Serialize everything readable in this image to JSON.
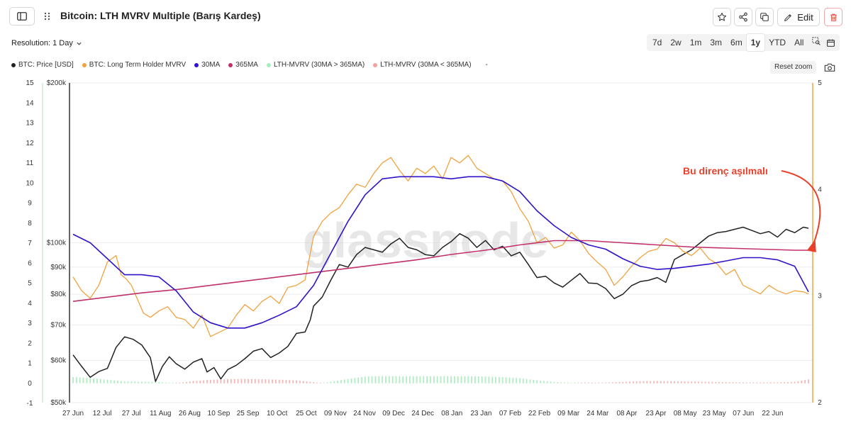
{
  "header": {
    "title": "Bitcoin: LTH MVRV Multiple (Barış Kardeş)",
    "edit_label": "Edit"
  },
  "controls": {
    "resolution_label": "Resolution: 1 Day",
    "ranges": [
      "7d",
      "2w",
      "1m",
      "3m",
      "6m",
      "1y",
      "YTD",
      "All"
    ],
    "active_range": "1y",
    "reset_zoom": "Reset zoom"
  },
  "legend": [
    {
      "label": "BTC: Price [USD]",
      "color": "#222222"
    },
    {
      "label": "BTC: Long Term Holder MVRV",
      "color": "#f0a340"
    },
    {
      "label": "30MA",
      "color": "#2e14c9"
    },
    {
      "label": "365MA",
      "color": "#c2306b"
    },
    {
      "label": "LTH-MVRV (30MA > 365MA)",
      "color": "#a9ebbd"
    },
    {
      "label": "LTH-MVRV (30MA < 365MA)",
      "color": "#f1a2a2"
    },
    {
      "label": "-",
      "color": ""
    }
  ],
  "watermark": "glassnode",
  "annotation": "Bu direnç aşılmalı",
  "chart_data": {
    "type": "line",
    "x_labels": [
      "27 Jun",
      "12 Jul",
      "27 Jul",
      "11 Aug",
      "26 Aug",
      "10 Sep",
      "25 Sep",
      "10 Oct",
      "25 Oct",
      "09 Nov",
      "24 Nov",
      "09 Dec",
      "24 Dec",
      "08 Jan",
      "23 Jan",
      "07 Feb",
      "22 Feb",
      "09 Mar",
      "24 Mar",
      "08 Apr",
      "23 Apr",
      "08 May",
      "23 May",
      "07 Jun",
      "22 Jun"
    ],
    "y_left_oscillator": {
      "ticks": [
        -1,
        0,
        1,
        2,
        3,
        4,
        5,
        6,
        7,
        8,
        9,
        10,
        11,
        12,
        13,
        14,
        15
      ],
      "range": [
        -1,
        15
      ]
    },
    "y_left_price": {
      "ticks": [
        "$50k",
        "$60k",
        "$70k",
        "$80k",
        "$90k",
        "$100k",
        "$200k"
      ],
      "values": [
        50000,
        60000,
        70000,
        80000,
        90000,
        100000,
        200000
      ],
      "scale": "log"
    },
    "y_right_mvrv": {
      "ticks": [
        2,
        3,
        4,
        5
      ],
      "range": [
        2,
        5
      ]
    },
    "series": [
      {
        "name": "BTC: Price [USD]",
        "color": "#222222",
        "axis": "price",
        "points": [
          [
            0,
            61500
          ],
          [
            5,
            58500
          ],
          [
            10,
            55800
          ],
          [
            15,
            57200
          ],
          [
            20,
            58000
          ],
          [
            25,
            63500
          ],
          [
            30,
            66500
          ],
          [
            35,
            65800
          ],
          [
            40,
            64200
          ],
          [
            45,
            60800
          ],
          [
            48,
            54800
          ],
          [
            52,
            58500
          ],
          [
            56,
            61000
          ],
          [
            60,
            59200
          ],
          [
            65,
            57800
          ],
          [
            70,
            59600
          ],
          [
            75,
            60500
          ],
          [
            78,
            57100
          ],
          [
            82,
            58200
          ],
          [
            86,
            55400
          ],
          [
            90,
            57700
          ],
          [
            95,
            58800
          ],
          [
            100,
            60500
          ],
          [
            105,
            62500
          ],
          [
            110,
            63200
          ],
          [
            115,
            60800
          ],
          [
            120,
            62000
          ],
          [
            125,
            63800
          ],
          [
            130,
            67500
          ],
          [
            135,
            67900
          ],
          [
            138,
            71500
          ],
          [
            140,
            76000
          ],
          [
            145,
            79000
          ],
          [
            150,
            85000
          ],
          [
            155,
            91000
          ],
          [
            160,
            90000
          ],
          [
            165,
            95000
          ],
          [
            170,
            98000
          ],
          [
            175,
            97000
          ],
          [
            180,
            96000
          ],
          [
            185,
            99500
          ],
          [
            190,
            102000
          ],
          [
            195,
            98000
          ],
          [
            200,
            97000
          ],
          [
            205,
            95000
          ],
          [
            210,
            94500
          ],
          [
            215,
            98000
          ],
          [
            220,
            100500
          ],
          [
            225,
            104000
          ],
          [
            230,
            102000
          ],
          [
            235,
            98000
          ],
          [
            240,
            101000
          ],
          [
            245,
            97000
          ],
          [
            250,
            98500
          ],
          [
            255,
            94500
          ],
          [
            260,
            96000
          ],
          [
            265,
            91000
          ],
          [
            270,
            86000
          ],
          [
            275,
            86500
          ],
          [
            280,
            84000
          ],
          [
            285,
            82500
          ],
          [
            290,
            85000
          ],
          [
            295,
            87500
          ],
          [
            300,
            84000
          ],
          [
            305,
            83800
          ],
          [
            310,
            82000
          ],
          [
            315,
            78500
          ],
          [
            320,
            80000
          ],
          [
            325,
            83000
          ],
          [
            330,
            84500
          ],
          [
            335,
            85000
          ],
          [
            340,
            86000
          ],
          [
            345,
            84200
          ],
          [
            350,
            93000
          ],
          [
            355,
            95000
          ],
          [
            360,
            97000
          ],
          [
            365,
            100000
          ],
          [
            370,
            103000
          ],
          [
            375,
            104500
          ],
          [
            380,
            105000
          ],
          [
            385,
            106000
          ],
          [
            390,
            107000
          ],
          [
            395,
            105500
          ],
          [
            400,
            104000
          ],
          [
            405,
            105000
          ],
          [
            410,
            102500
          ],
          [
            415,
            106000
          ],
          [
            420,
            104500
          ],
          [
            425,
            107000
          ],
          [
            428,
            106500
          ]
        ]
      },
      {
        "name": "BTC: Long Term Holder MVRV",
        "color": "#f0a340",
        "axis": "mvrv",
        "points": [
          [
            0,
            3.18
          ],
          [
            5,
            3.05
          ],
          [
            10,
            2.98
          ],
          [
            15,
            3.1
          ],
          [
            20,
            3.32
          ],
          [
            25,
            3.38
          ],
          [
            28,
            3.2
          ],
          [
            31,
            3.16
          ],
          [
            34,
            3.1
          ],
          [
            38,
            2.95
          ],
          [
            41,
            2.84
          ],
          [
            45,
            2.8
          ],
          [
            50,
            2.86
          ],
          [
            55,
            2.9
          ],
          [
            60,
            2.8
          ],
          [
            65,
            2.78
          ],
          [
            70,
            2.7
          ],
          [
            75,
            2.82
          ],
          [
            80,
            2.62
          ],
          [
            85,
            2.66
          ],
          [
            90,
            2.7
          ],
          [
            95,
            2.82
          ],
          [
            100,
            2.92
          ],
          [
            105,
            2.86
          ],
          [
            110,
            2.95
          ],
          [
            115,
            3.0
          ],
          [
            120,
            2.93
          ],
          [
            125,
            3.08
          ],
          [
            130,
            3.1
          ],
          [
            135,
            3.15
          ],
          [
            140,
            3.56
          ],
          [
            145,
            3.7
          ],
          [
            150,
            3.78
          ],
          [
            155,
            3.83
          ],
          [
            160,
            3.95
          ],
          [
            165,
            4.05
          ],
          [
            170,
            4.02
          ],
          [
            175,
            4.15
          ],
          [
            180,
            4.25
          ],
          [
            185,
            4.3
          ],
          [
            190,
            4.18
          ],
          [
            195,
            4.08
          ],
          [
            200,
            4.2
          ],
          [
            205,
            4.15
          ],
          [
            210,
            4.22
          ],
          [
            215,
            4.1
          ],
          [
            220,
            4.3
          ],
          [
            225,
            4.25
          ],
          [
            230,
            4.32
          ],
          [
            235,
            4.2
          ],
          [
            240,
            4.15
          ],
          [
            245,
            4.1
          ],
          [
            250,
            4.08
          ],
          [
            255,
            3.98
          ],
          [
            260,
            3.82
          ],
          [
            265,
            3.7
          ],
          [
            270,
            3.5
          ],
          [
            275,
            3.55
          ],
          [
            280,
            3.45
          ],
          [
            285,
            3.48
          ],
          [
            290,
            3.6
          ],
          [
            295,
            3.52
          ],
          [
            300,
            3.4
          ],
          [
            305,
            3.32
          ],
          [
            310,
            3.25
          ],
          [
            315,
            3.1
          ],
          [
            320,
            3.18
          ],
          [
            325,
            3.28
          ],
          [
            330,
            3.36
          ],
          [
            335,
            3.42
          ],
          [
            340,
            3.44
          ],
          [
            345,
            3.54
          ],
          [
            350,
            3.5
          ],
          [
            355,
            3.42
          ],
          [
            360,
            3.38
          ],
          [
            365,
            3.45
          ],
          [
            370,
            3.35
          ],
          [
            375,
            3.3
          ],
          [
            380,
            3.2
          ],
          [
            385,
            3.25
          ],
          [
            390,
            3.1
          ],
          [
            395,
            3.06
          ],
          [
            400,
            3.02
          ],
          [
            405,
            3.1
          ],
          [
            410,
            3.05
          ],
          [
            415,
            3.02
          ],
          [
            420,
            3.05
          ],
          [
            425,
            3.04
          ],
          [
            428,
            3.02
          ]
        ]
      },
      {
        "name": "30MA",
        "color": "#2e14c9",
        "axis": "mvrv",
        "points": [
          [
            0,
            3.58
          ],
          [
            10,
            3.5
          ],
          [
            20,
            3.35
          ],
          [
            30,
            3.2
          ],
          [
            40,
            3.2
          ],
          [
            50,
            3.18
          ],
          [
            60,
            3.05
          ],
          [
            70,
            2.85
          ],
          [
            80,
            2.75
          ],
          [
            90,
            2.7
          ],
          [
            100,
            2.7
          ],
          [
            110,
            2.75
          ],
          [
            120,
            2.82
          ],
          [
            130,
            2.9
          ],
          [
            140,
            3.1
          ],
          [
            150,
            3.4
          ],
          [
            160,
            3.7
          ],
          [
            170,
            3.95
          ],
          [
            180,
            4.1
          ],
          [
            190,
            4.12
          ],
          [
            200,
            4.12
          ],
          [
            210,
            4.12
          ],
          [
            220,
            4.1
          ],
          [
            230,
            4.12
          ],
          [
            240,
            4.12
          ],
          [
            250,
            4.08
          ],
          [
            260,
            3.98
          ],
          [
            270,
            3.8
          ],
          [
            280,
            3.66
          ],
          [
            290,
            3.55
          ],
          [
            300,
            3.48
          ],
          [
            310,
            3.44
          ],
          [
            320,
            3.35
          ],
          [
            330,
            3.28
          ],
          [
            340,
            3.25
          ],
          [
            350,
            3.26
          ],
          [
            360,
            3.28
          ],
          [
            370,
            3.3
          ],
          [
            380,
            3.33
          ],
          [
            390,
            3.36
          ],
          [
            400,
            3.36
          ],
          [
            410,
            3.34
          ],
          [
            420,
            3.28
          ],
          [
            428,
            3.04
          ]
        ]
      },
      {
        "name": "365MA",
        "color": "#c2306b",
        "axis": "mvrv",
        "points": [
          [
            0,
            2.95
          ],
          [
            20,
            2.99
          ],
          [
            40,
            3.03
          ],
          [
            60,
            3.06
          ],
          [
            80,
            3.1
          ],
          [
            100,
            3.14
          ],
          [
            120,
            3.18
          ],
          [
            140,
            3.22
          ],
          [
            160,
            3.26
          ],
          [
            180,
            3.3
          ],
          [
            200,
            3.34
          ],
          [
            220,
            3.39
          ],
          [
            240,
            3.43
          ],
          [
            260,
            3.48
          ],
          [
            280,
            3.52
          ],
          [
            300,
            3.52
          ],
          [
            320,
            3.5
          ],
          [
            340,
            3.48
          ],
          [
            360,
            3.46
          ],
          [
            380,
            3.45
          ],
          [
            400,
            3.44
          ],
          [
            420,
            3.43
          ],
          [
            428,
            3.43
          ]
        ]
      }
    ]
  }
}
